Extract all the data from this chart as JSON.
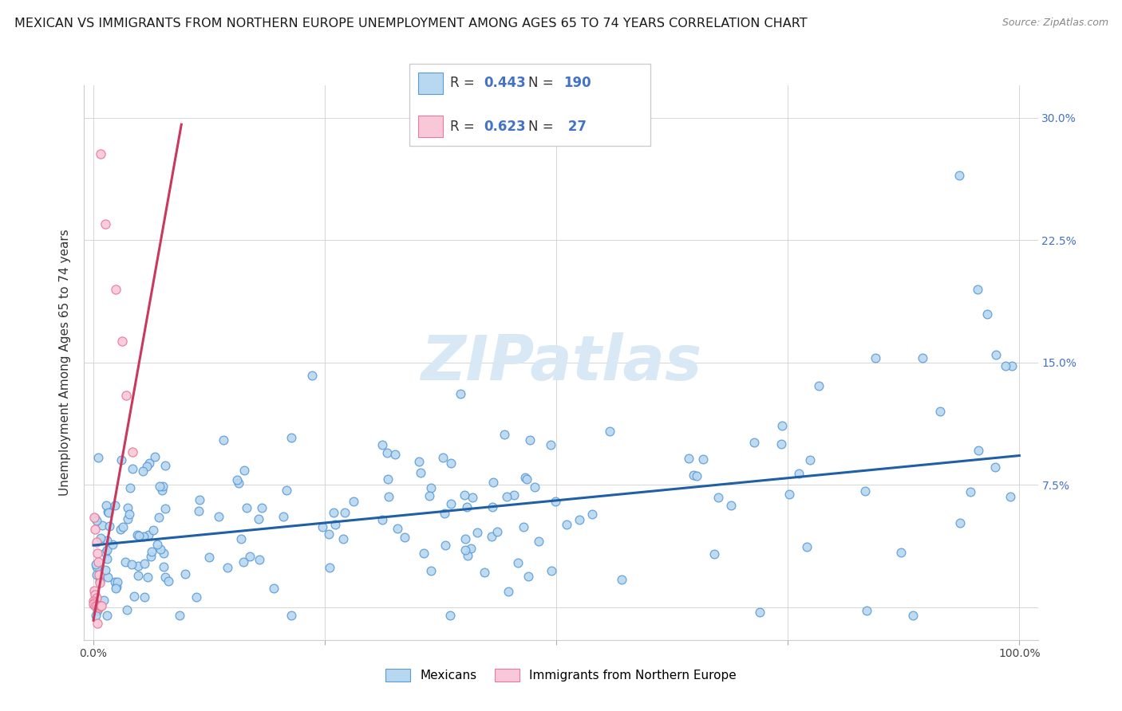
{
  "title": "MEXICAN VS IMMIGRANTS FROM NORTHERN EUROPE UNEMPLOYMENT AMONG AGES 65 TO 74 YEARS CORRELATION CHART",
  "source": "Source: ZipAtlas.com",
  "ylabel": "Unemployment Among Ages 65 to 74 years",
  "xlim": [
    -0.01,
    1.02
  ],
  "ylim": [
    -0.02,
    0.32
  ],
  "xticks": [
    0.0,
    0.25,
    0.5,
    0.75,
    1.0
  ],
  "xticklabels": [
    "0.0%",
    "",
    "",
    "",
    "100.0%"
  ],
  "yticks": [
    0.0,
    0.075,
    0.15,
    0.225,
    0.3
  ],
  "yticklabels_right": [
    "",
    "7.5%",
    "15.0%",
    "22.5%",
    "30.0%"
  ],
  "blue_fill": "#b8d7f0",
  "blue_edge": "#5b9bd5",
  "pink_fill": "#f9c8d8",
  "pink_edge": "#e8799a",
  "line_blue": "#1f5fa6",
  "line_pink": "#c9395e",
  "line_dash_color": "#c8c8c8",
  "watermark_color": "#d8e8f4",
  "legend_R_blue": "0.443",
  "legend_N_blue": "190",
  "legend_R_pink": "0.623",
  "legend_N_pink": "27",
  "blue_label": "Mexicans",
  "pink_label": "Immigrants from Northern Europe",
  "title_fontsize": 11.5,
  "axis_label_fontsize": 11,
  "tick_fontsize": 10,
  "legend_fontsize": 12,
  "blue_line_slope": 0.055,
  "blue_line_intercept": 0.038,
  "pink_line_slope": 3.2,
  "pink_line_intercept": -0.008,
  "pink_line_xmax": 0.095,
  "pink_dash_xstart": 0.07,
  "pink_dash_xend": 0.095
}
